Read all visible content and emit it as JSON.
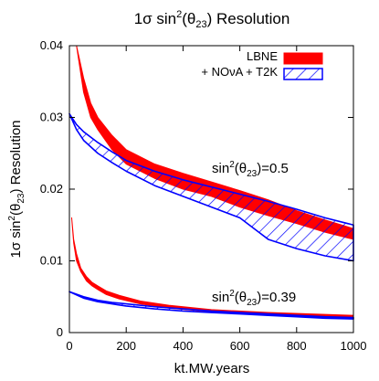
{
  "chart_data": {
    "type": "area",
    "title": "1σ sin²(θ₂₃) Resolution",
    "title_parts": {
      "pre": "1σ sin",
      "sup": "2",
      "mid": "(θ",
      "sub": "23",
      "post": ") Resolution"
    },
    "xlabel": "kt.MW.years",
    "ylabel_parts": {
      "pre": "1σ sin",
      "sup": "2",
      "mid": "(θ",
      "sub": "23",
      "post": ") Resolution"
    },
    "xlim": [
      0,
      1000
    ],
    "ylim": [
      0,
      0.04
    ],
    "x_ticks": [
      0,
      200,
      400,
      600,
      800,
      1000
    ],
    "x_tick_labels": [
      "0",
      "200",
      "400",
      "600",
      "800",
      "1000"
    ],
    "y_ticks": [
      0,
      0.01,
      0.02,
      0.03,
      0.04
    ],
    "y_tick_labels": [
      "0",
      "0.01",
      "0.02",
      "0.03",
      "0.04"
    ],
    "grid": false,
    "legend_position": "top-right",
    "colors": {
      "lbne": "#ff0000",
      "combined": "#0000ff"
    },
    "series": [
      {
        "name": "LBNE",
        "label": "LBNE",
        "style": "solid-band",
        "group": "sin2=0.5",
        "x": [
          10,
          25,
          50,
          75,
          100,
          150,
          175,
          200,
          300,
          400,
          500,
          600,
          700,
          800,
          900,
          1000
        ],
        "upper": [
          0.04,
          0.04,
          0.0355,
          0.032,
          0.03,
          0.0275,
          0.0265,
          0.0255,
          0.0235,
          0.0222,
          0.021,
          0.0198,
          0.0185,
          0.017,
          0.0157,
          0.0145
        ],
        "lower": [
          0.04,
          0.04,
          0.0335,
          0.03,
          0.0283,
          0.0255,
          0.0245,
          0.0235,
          0.0215,
          0.02,
          0.019,
          0.0175,
          0.0163,
          0.0152,
          0.014,
          0.013
        ]
      },
      {
        "name": "+ NOνA + T2K",
        "label": "+ NOνA + T2K",
        "style": "hatched-band",
        "group": "sin2=0.5",
        "x": [
          0,
          25,
          50,
          100,
          150,
          200,
          300,
          400,
          500,
          600,
          700,
          800,
          900,
          1000
        ],
        "upper": [
          0.0305,
          0.029,
          0.028,
          0.0265,
          0.0252,
          0.024,
          0.0225,
          0.0213,
          0.0203,
          0.0193,
          0.0183,
          0.0172,
          0.016,
          0.015
        ],
        "lower": [
          0.0305,
          0.0283,
          0.0268,
          0.025,
          0.0237,
          0.0225,
          0.0205,
          0.019,
          0.0175,
          0.016,
          0.013,
          0.0117,
          0.0107,
          0.01
        ]
      },
      {
        "name": "LBNE",
        "style": "solid-band",
        "group": "sin2=0.39",
        "x": [
          8,
          15,
          25,
          40,
          60,
          80,
          100,
          130,
          175,
          250,
          350,
          500,
          700,
          1000
        ],
        "upper": [
          0.016,
          0.013,
          0.011,
          0.009,
          0.0078,
          0.007,
          0.0065,
          0.0058,
          0.0052,
          0.0044,
          0.0038,
          0.0032,
          0.0028,
          0.0024
        ],
        "lower": [
          0.016,
          0.0125,
          0.01,
          0.0085,
          0.0072,
          0.0065,
          0.006,
          0.0053,
          0.0047,
          0.004,
          0.0034,
          0.0029,
          0.0025,
          0.0021
        ]
      },
      {
        "name": "+ NOνA + T2K",
        "style": "hatched-band",
        "group": "sin2=0.39",
        "x": [
          0,
          50,
          100,
          150,
          200,
          300,
          400,
          500,
          600,
          700,
          800,
          900,
          1000
        ],
        "upper": [
          0.0057,
          0.005,
          0.0045,
          0.0042,
          0.004,
          0.0036,
          0.0033,
          0.003,
          0.0028,
          0.0026,
          0.0024,
          0.0022,
          0.0021
        ],
        "lower": [
          0.0057,
          0.0048,
          0.0043,
          0.004,
          0.0037,
          0.0033,
          0.003,
          0.0028,
          0.0026,
          0.0024,
          0.0022,
          0.002,
          0.0019
        ]
      }
    ],
    "annotations": [
      {
        "id": "ann-05",
        "pre": "sin",
        "sup": "2",
        "mid": "(θ",
        "sub": "23",
        "post": ")=0.5",
        "x": 510,
        "y": 0.0225
      },
      {
        "id": "ann-039",
        "pre": "sin",
        "sup": "2",
        "mid": "(θ",
        "sub": "23",
        "post": ")=0.39",
        "x": 510,
        "y": 0.0045
      }
    ]
  }
}
